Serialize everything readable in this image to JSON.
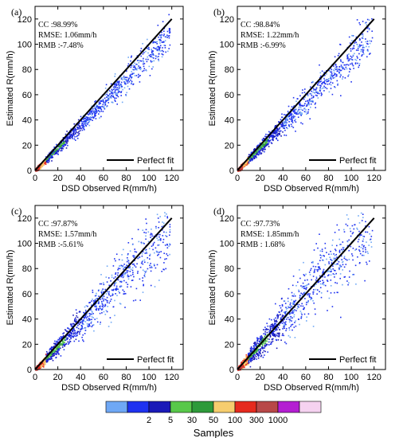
{
  "chart_data": [
    {
      "type": "scatter",
      "panel": "(a)",
      "stats": [
        "CC :98.99%",
        "RMSE: 1.06mm/h",
        "RMB :-7.48%"
      ],
      "xlabel": "DSD Observed R(mm/h)",
      "ylabel": "Estimated R(mm/h)",
      "xlim": [
        0,
        130
      ],
      "ylim": [
        0,
        130
      ],
      "xticks": [
        "0",
        "20",
        "40",
        "60",
        "80",
        "100",
        "120"
      ],
      "yticks": [
        "0",
        "20",
        "40",
        "60",
        "80",
        "100",
        "120"
      ],
      "reference_line": {
        "name": "Perfect fit",
        "x": [
          0,
          120
        ],
        "y": [
          0,
          120
        ]
      },
      "legend_loc": "lower-right"
    },
    {
      "type": "scatter",
      "panel": "(b)",
      "stats": [
        "CC :98.84%",
        "RMSE: 1.22mm/h",
        "RMB :-6.99%"
      ],
      "xlabel": "DSD Observed R(mm/h)",
      "ylabel": "Estimated R(mm/h)",
      "xlim": [
        0,
        130
      ],
      "ylim": [
        0,
        130
      ],
      "xticks": [
        "0",
        "20",
        "40",
        "60",
        "80",
        "100",
        "120"
      ],
      "yticks": [
        "0",
        "20",
        "40",
        "60",
        "80",
        "100",
        "120"
      ],
      "reference_line": {
        "name": "Perfect fit",
        "x": [
          0,
          120
        ],
        "y": [
          0,
          120
        ]
      },
      "legend_loc": "lower-right"
    },
    {
      "type": "scatter",
      "panel": "(c)",
      "stats": [
        "CC :97.87%",
        "RMSE: 1.57mm/h",
        "RMB :-5.61%"
      ],
      "xlabel": "DSD Observed R(mm/h)",
      "ylabel": "Estimated R(mm/h)",
      "xlim": [
        0,
        130
      ],
      "ylim": [
        0,
        130
      ],
      "xticks": [
        "0",
        "20",
        "40",
        "60",
        "80",
        "100",
        "120"
      ],
      "yticks": [
        "0",
        "20",
        "40",
        "60",
        "80",
        "100",
        "120"
      ],
      "reference_line": {
        "name": "Perfect fit",
        "x": [
          0,
          120
        ],
        "y": [
          0,
          120
        ]
      },
      "legend_loc": "lower-right"
    },
    {
      "type": "scatter",
      "panel": "(d)",
      "stats": [
        "CC :97.73%",
        "RMSE: 1.85mm/h",
        "RMB : 1.68%"
      ],
      "xlabel": "DSD Observed R(mm/h)",
      "ylabel": "Estimated R(mm/h)",
      "xlim": [
        0,
        130
      ],
      "ylim": [
        0,
        130
      ],
      "xticks": [
        "0",
        "20",
        "40",
        "60",
        "80",
        "100",
        "120"
      ],
      "yticks": [
        "0",
        "20",
        "40",
        "60",
        "80",
        "100",
        "120"
      ],
      "reference_line": {
        "name": "Perfect fit",
        "x": [
          0,
          120
        ],
        "y": [
          0,
          120
        ]
      },
      "legend_loc": "lower-right"
    }
  ],
  "colorbar": {
    "title": "Samples",
    "colors": [
      "#6fa8f5",
      "#1e32f0",
      "#1a1ab8",
      "#58c84a",
      "#2e9a3a",
      "#f6cd6e",
      "#e62a1e",
      "#b84848",
      "#b41ed2",
      "#f5d2f0"
    ],
    "labels": [
      "2",
      "5",
      "30",
      "50",
      "100",
      "300",
      "1000"
    ]
  }
}
